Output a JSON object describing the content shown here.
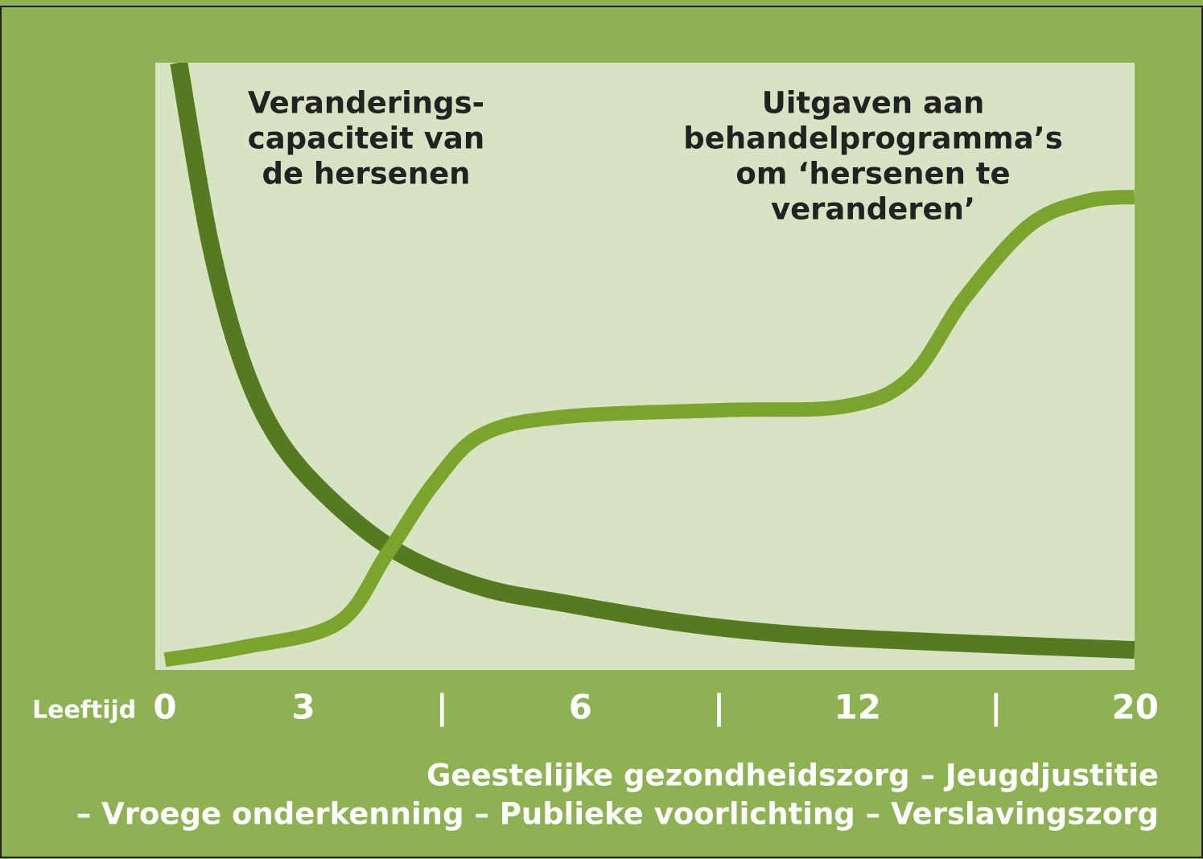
{
  "chart_data": {
    "type": "line",
    "x_label": "Leeftijd",
    "xlim": [
      0,
      20
    ],
    "xticks": [
      0,
      3,
      {
        "value": 4.5,
        "label": "|"
      },
      6,
      {
        "value": 9,
        "label": "|"
      },
      12,
      {
        "value": 16,
        "label": "|"
      },
      20
    ],
    "ylim": [
      0,
      100
    ],
    "background": "#8db153",
    "plot_background": "#d8e3c3",
    "series": [
      {
        "name": [
          "Veranderings-",
          "capaciteit van",
          "de hersenen"
        ],
        "color": "#567a22",
        "x": [
          0.3,
          0.96,
          1.66,
          2.5,
          3.37,
          4.07,
          4.94,
          5.82,
          8.25,
          10.86,
          15.1,
          20
        ],
        "values": [
          100,
          71,
          51,
          37.5,
          27,
          19,
          13.6,
          11,
          7.7,
          5.7,
          4.4,
          3.3
        ]
      },
      {
        "name": [
          "Uitgaven aan",
          "behandelprogramma’s",
          "om ‘hersenen te",
          "veranderen’"
        ],
        "color": "#7aa42e",
        "x": [
          0,
          1.66,
          3.37,
          3.9,
          4.42,
          4.94,
          5.82,
          9.12,
          11.7,
          13.5,
          15.1,
          16.96,
          18.6,
          20
        ],
        "values": [
          1.7,
          3.7,
          7.7,
          19,
          30.9,
          38.8,
          41.7,
          42.8,
          43.4,
          48,
          61.3,
          73.2,
          77.2,
          77.9
        ]
      }
    ],
    "footer": [
      "Geestelijke gezondheidszorg – Jeugdjustitie",
      "– Vroege onderkenning – Publieke voorlichting – Verslavingszorg"
    ]
  }
}
